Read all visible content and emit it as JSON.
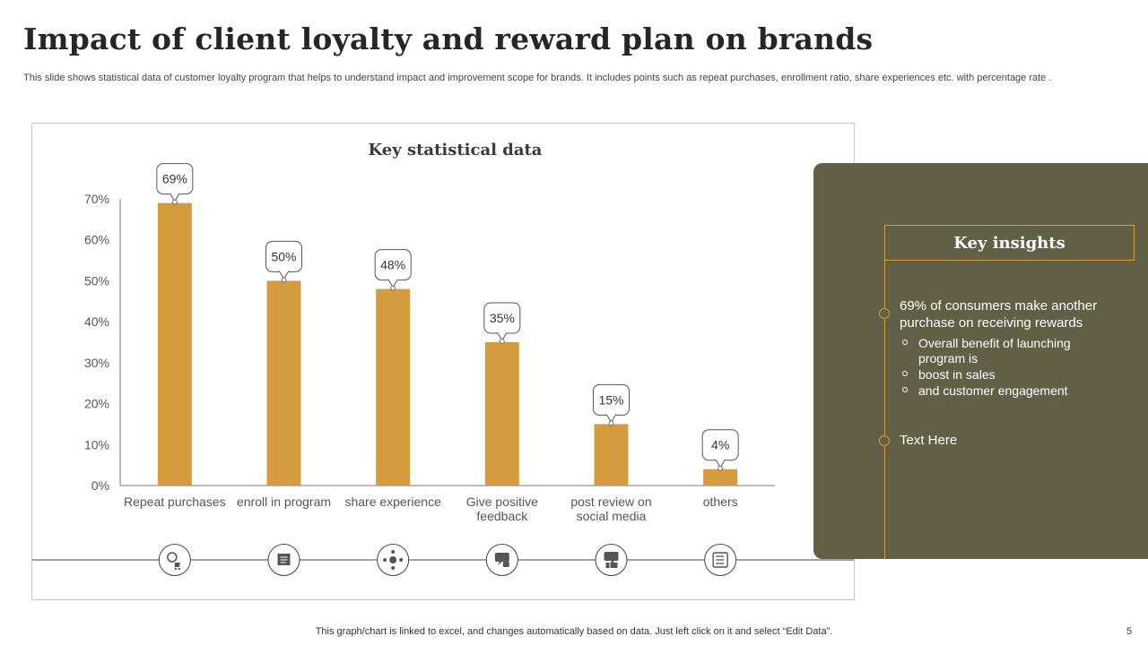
{
  "page": {
    "title": "Impact of client loyalty and reward plan on brands",
    "subtitle": "This slide shows statistical data of customer loyalty program that helps to understand impact and improvement scope for brands. It includes points such as repeat purchases, enrollment ratio, share experiences etc. with percentage rate .",
    "footer": "This graph/chart is linked to excel,  and changes automatically based on data. Just left click on it and select “Edit Data”.",
    "page_number": "5"
  },
  "colors": {
    "bar": "#d59c3d",
    "panel": "#615f45",
    "accent": "#d49a3c",
    "axis": "#444444"
  },
  "chart_data": {
    "type": "bar",
    "title": "Key statistical  data",
    "categories": [
      [
        "Repeat purchases"
      ],
      [
        "enroll in program"
      ],
      [
        "share experience"
      ],
      [
        "Give positive",
        "feedback"
      ],
      [
        "post review on",
        "social media"
      ],
      [
        "others"
      ]
    ],
    "values": [
      69,
      50,
      48,
      35,
      15,
      4
    ],
    "data_labels": [
      "69%",
      "50%",
      "48%",
      "35%",
      "15%",
      "4%"
    ],
    "y_ticks": [
      "0%",
      "10%",
      "20%",
      "30%",
      "40%",
      "50%",
      "60%",
      "70%"
    ],
    "ylim": [
      0,
      70
    ],
    "xlabel": "",
    "ylabel": "",
    "grid": false,
    "icons": [
      "repeat-purchase-icon",
      "enroll-form-icon",
      "share-network-icon",
      "feedback-chat-icon",
      "review-thumbs-up-icon",
      "checklist-icon"
    ]
  },
  "insights": {
    "header": "Key insights",
    "main": "69% of consumers make another purchase on receiving rewards",
    "sub_items": [
      "Overall benefit of launching program is",
      "boost in sales",
      "and customer engagement"
    ],
    "secondary": "Text Here"
  }
}
